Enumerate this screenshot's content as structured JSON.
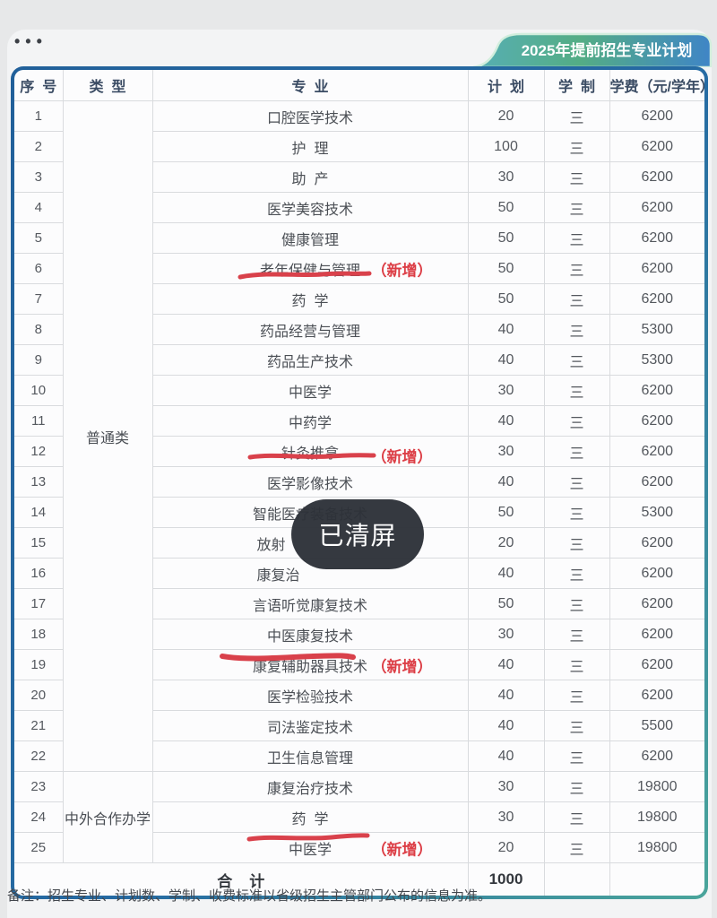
{
  "window": {
    "menu_dots": "•••",
    "ribbon_title": "2025年提前招生专业计划"
  },
  "table": {
    "headers": {
      "no": "序  号",
      "type": "类  型",
      "major": "专  业",
      "plan": "计  划",
      "years": "学  制",
      "fee": "学费（元/学年）"
    },
    "type_groups": [
      {
        "label": "普通类",
        "span": 22
      },
      {
        "label": "中外合作办学",
        "span": 3
      }
    ],
    "new_badge": "（新增）",
    "rows": [
      {
        "no": "1",
        "major": "口腔医学技术",
        "plan": "20",
        "years": "三",
        "fee": "6200"
      },
      {
        "no": "2",
        "major": "护  理",
        "plan": "100",
        "years": "三",
        "fee": "6200"
      },
      {
        "no": "3",
        "major": "助  产",
        "plan": "30",
        "years": "三",
        "fee": "6200"
      },
      {
        "no": "4",
        "major": "医学美容技术",
        "plan": "50",
        "years": "三",
        "fee": "6200"
      },
      {
        "no": "5",
        "major": "健康管理",
        "plan": "50",
        "years": "三",
        "fee": "6200"
      },
      {
        "no": "6",
        "major": "老年保健与管理",
        "plan": "50",
        "years": "三",
        "fee": "6200",
        "is_new": true
      },
      {
        "no": "7",
        "major": "药  学",
        "plan": "50",
        "years": "三",
        "fee": "6200"
      },
      {
        "no": "8",
        "major": "药品经营与管理",
        "plan": "40",
        "years": "三",
        "fee": "5300"
      },
      {
        "no": "9",
        "major": "药品生产技术",
        "plan": "40",
        "years": "三",
        "fee": "5300"
      },
      {
        "no": "10",
        "major": "中医学",
        "plan": "30",
        "years": "三",
        "fee": "6200"
      },
      {
        "no": "11",
        "major": "中药学",
        "plan": "40",
        "years": "三",
        "fee": "6200"
      },
      {
        "no": "12",
        "major": "针灸推拿",
        "plan": "30",
        "years": "三",
        "fee": "6200",
        "is_new": true,
        "badge_low": true
      },
      {
        "no": "13",
        "major": "医学影像技术",
        "plan": "40",
        "years": "三",
        "fee": "6200"
      },
      {
        "no": "14",
        "major": "智能医疗装备技术",
        "plan": "50",
        "years": "三",
        "fee": "5300"
      },
      {
        "no": "15",
        "major": "放射",
        "plan": "20",
        "years": "三",
        "fee": "6200",
        "partially_hidden": true
      },
      {
        "no": "16",
        "major": "康复治",
        "plan": "40",
        "years": "三",
        "fee": "6200",
        "partially_hidden": true
      },
      {
        "no": "17",
        "major": "言语听觉康复技术",
        "plan": "50",
        "years": "三",
        "fee": "6200"
      },
      {
        "no": "18",
        "major": "中医康复技术",
        "plan": "30",
        "years": "三",
        "fee": "6200"
      },
      {
        "no": "19",
        "major": "康复辅助器具技术",
        "plan": "40",
        "years": "三",
        "fee": "6200",
        "is_new": true
      },
      {
        "no": "20",
        "major": "医学检验技术",
        "plan": "40",
        "years": "三",
        "fee": "6200"
      },
      {
        "no": "21",
        "major": "司法鉴定技术",
        "plan": "40",
        "years": "三",
        "fee": "5500"
      },
      {
        "no": "22",
        "major": "卫生信息管理",
        "plan": "40",
        "years": "三",
        "fee": "6200"
      },
      {
        "no": "23",
        "major": "康复治疗技术",
        "plan": "30",
        "years": "三",
        "fee": "19800"
      },
      {
        "no": "24",
        "major": "药  学",
        "plan": "30",
        "years": "三",
        "fee": "19800"
      },
      {
        "no": "25",
        "major": "中医学",
        "plan": "20",
        "years": "三",
        "fee": "19800",
        "is_new": true
      }
    ],
    "total": {
      "label": "合    计",
      "plan": "1000"
    }
  },
  "toast": {
    "message": "已清屏"
  },
  "footnote": "备注：招生专业、计划数、学制、收费标准以省级招生主管部门公布的信息为准。",
  "colors": {
    "ribbon_gradient": [
      "#57afb4",
      "#54ad85",
      "#3f85c6"
    ],
    "frame_gradient": [
      "#21609a",
      "#4aa59b"
    ],
    "annotation_red": "#dc3d45",
    "toast_background": "#30343b"
  }
}
